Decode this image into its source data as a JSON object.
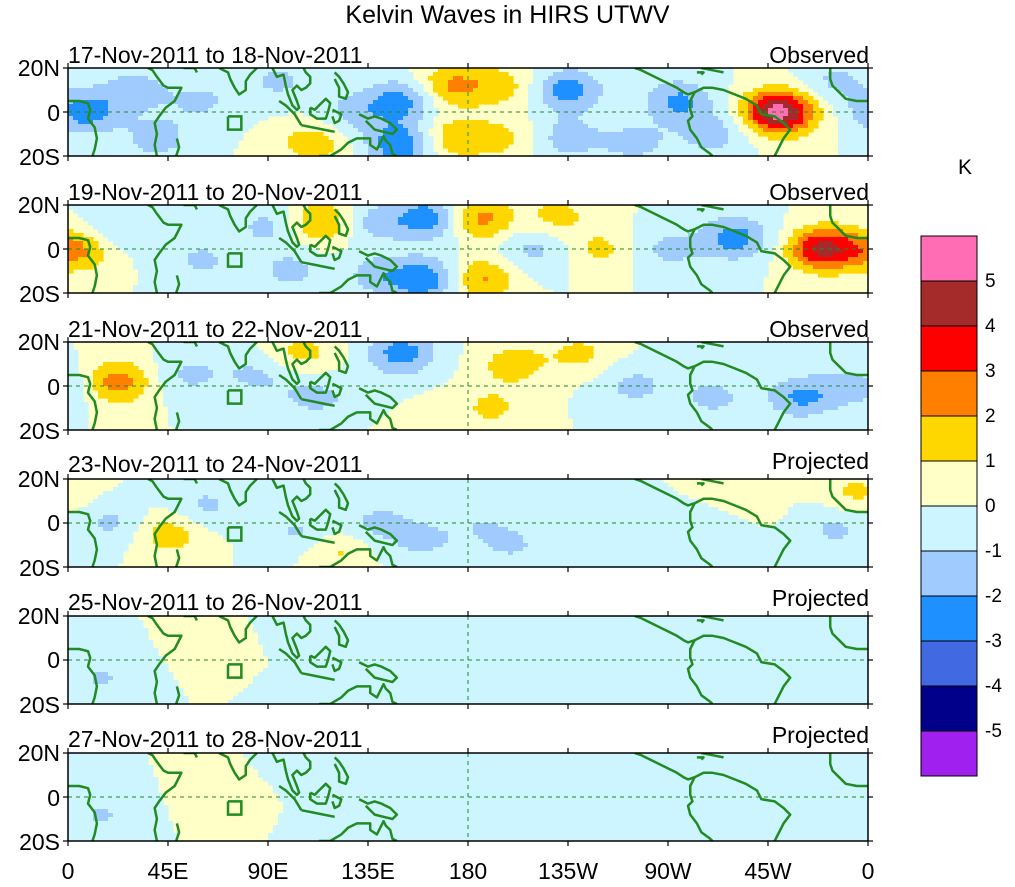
{
  "title": "Kelvin Waves in HIRS UTWV",
  "colorbar": {
    "unit": "K",
    "labels": [
      "5",
      "4",
      "3",
      "2",
      "1",
      "0",
      "-1",
      "-2",
      "-3",
      "-4",
      "-5"
    ],
    "colors": [
      "#ff6eb4",
      "#a52a2a",
      "#ff0000",
      "#ff7f00",
      "#ffd700",
      "#ffffc8",
      "#cdf5ff",
      "#a0cbff",
      "#1e90ff",
      "#4169e1",
      "#00008b",
      "#a020f0"
    ],
    "upper_bounds": [
      5,
      4,
      3,
      2,
      1,
      0,
      -1,
      -2,
      -3,
      -4,
      -5
    ]
  },
  "latitude_labels": [
    "20N",
    "0",
    "20S"
  ],
  "longitude_labels": [
    "0",
    "45E",
    "90E",
    "135E",
    "180",
    "135W",
    "90W",
    "45W",
    "0"
  ],
  "panels": [
    {
      "dates": "17-Nov-2011 to 18-Nov-2011",
      "status": "Observed"
    },
    {
      "dates": "19-Nov-2011 to 20-Nov-2011",
      "status": "Observed"
    },
    {
      "dates": "21-Nov-2011 to 22-Nov-2011",
      "status": "Observed"
    },
    {
      "dates": "23-Nov-2011 to 24-Nov-2011",
      "status": "Projected"
    },
    {
      "dates": "25-Nov-2011 to 26-Nov-2011",
      "status": "Projected"
    },
    {
      "dates": "27-Nov-2011 to 28-Nov-2011",
      "status": "Projected"
    }
  ],
  "anomaly_fields": [
    [
      {
        "lon": 8,
        "lat": 0,
        "amp": -2.5
      },
      {
        "lon": 30,
        "lat": 10,
        "amp": -1.5
      },
      {
        "lon": 40,
        "lat": -12,
        "amp": -1.5
      },
      {
        "lon": 60,
        "lat": 5,
        "amp": -1.2
      },
      {
        "lon": 95,
        "lat": 14,
        "amp": -1.2
      },
      {
        "lon": 110,
        "lat": -14,
        "amp": 1.6
      },
      {
        "lon": 128,
        "lat": 0,
        "amp": -1.3
      },
      {
        "lon": 150,
        "lat": 5,
        "amp": -2.5
      },
      {
        "lon": 150,
        "lat": -15,
        "amp": -3
      },
      {
        "lon": 172,
        "lat": 12,
        "amp": 2.2
      },
      {
        "lon": 172,
        "lat": -12,
        "amp": 1.8
      },
      {
        "lon": 195,
        "lat": 12,
        "amp": 1.4
      },
      {
        "lon": 195,
        "lat": -12,
        "amp": 1.2
      },
      {
        "lon": 225,
        "lat": 10,
        "amp": -2.5
      },
      {
        "lon": 225,
        "lat": -12,
        "amp": -1.5
      },
      {
        "lon": 255,
        "lat": -14,
        "amp": -1.4
      },
      {
        "lon": 275,
        "lat": 5,
        "amp": -2.2
      },
      {
        "lon": 290,
        "lat": -10,
        "amp": -1.5
      },
      {
        "lon": 320,
        "lat": 0,
        "amp": 5.5
      },
      {
        "lon": 345,
        "lat": 14,
        "amp": -1.2
      }
    ],
    [
      {
        "lon": 5,
        "lat": 0,
        "amp": 2.3
      },
      {
        "lon": 20,
        "lat": 8,
        "amp": -1.2
      },
      {
        "lon": 60,
        "lat": -5,
        "amp": -1.2
      },
      {
        "lon": 90,
        "lat": 10,
        "amp": -1.3
      },
      {
        "lon": 100,
        "lat": -10,
        "amp": -1.3
      },
      {
        "lon": 115,
        "lat": 12,
        "amp": 2.3
      },
      {
        "lon": 135,
        "lat": 12,
        "amp": -1.5
      },
      {
        "lon": 140,
        "lat": -12,
        "amp": -1.5
      },
      {
        "lon": 162,
        "lat": 14,
        "amp": -2.8
      },
      {
        "lon": 162,
        "lat": -14,
        "amp": -2.8
      },
      {
        "lon": 185,
        "lat": 14,
        "amp": 2.4
      },
      {
        "lon": 185,
        "lat": -14,
        "amp": 2.3
      },
      {
        "lon": 210,
        "lat": 0,
        "amp": -1.3
      },
      {
        "lon": 220,
        "lat": 15,
        "amp": 1.3
      },
      {
        "lon": 240,
        "lat": 0,
        "amp": 1.2
      },
      {
        "lon": 270,
        "lat": 0,
        "amp": -1.3
      },
      {
        "lon": 300,
        "lat": 5,
        "amp": -2.5
      },
      {
        "lon": 340,
        "lat": 0,
        "amp": 4.3
      }
    ],
    [
      {
        "lon": 22,
        "lat": 2,
        "amp": 2.5
      },
      {
        "lon": 55,
        "lat": 5,
        "amp": -1.2
      },
      {
        "lon": 85,
        "lat": 5,
        "amp": -1.2
      },
      {
        "lon": 105,
        "lat": 15,
        "amp": 1.3
      },
      {
        "lon": 110,
        "lat": -5,
        "amp": -1.3
      },
      {
        "lon": 150,
        "lat": 15,
        "amp": -2.5
      },
      {
        "lon": 140,
        "lat": -10,
        "amp": -1.3
      },
      {
        "lon": 150,
        "lat": -15,
        "amp": 1.5
      },
      {
        "lon": 200,
        "lat": 10,
        "amp": 1.5
      },
      {
        "lon": 190,
        "lat": -10,
        "amp": 1.2
      },
      {
        "lon": 230,
        "lat": 15,
        "amp": 1.2
      },
      {
        "lon": 255,
        "lat": 0,
        "amp": -1.3
      },
      {
        "lon": 290,
        "lat": -5,
        "amp": -1.3
      },
      {
        "lon": 330,
        "lat": -5,
        "amp": -2.2
      },
      {
        "lon": 355,
        "lat": 0,
        "amp": -1.5
      }
    ],
    [
      {
        "lon": 20,
        "lat": 0,
        "amp": -1.2
      },
      {
        "lon": 45,
        "lat": -5,
        "amp": 1.6
      },
      {
        "lon": 62,
        "lat": 8,
        "amp": -1.2
      },
      {
        "lon": 105,
        "lat": -5,
        "amp": -1.3
      },
      {
        "lon": 120,
        "lat": -12,
        "amp": 1.3
      },
      {
        "lon": 140,
        "lat": 0,
        "amp": -1.3
      },
      {
        "lon": 160,
        "lat": -8,
        "amp": -1.2
      },
      {
        "lon": 185,
        "lat": 0,
        "amp": -0.8
      },
      {
        "lon": 200,
        "lat": -10,
        "amp": -1.1
      },
      {
        "lon": 240,
        "lat": 5,
        "amp": -0.8
      },
      {
        "lon": 290,
        "lat": 0,
        "amp": -1.2
      },
      {
        "lon": 300,
        "lat": 10,
        "amp": 1.1
      },
      {
        "lon": 345,
        "lat": -3,
        "amp": -1.2
      },
      {
        "lon": 355,
        "lat": 14,
        "amp": 1.2
      }
    ],
    [
      {
        "lon": 15,
        "lat": -8,
        "amp": -1.1
      },
      {
        "lon": 70,
        "lat": 5,
        "amp": 0.6
      },
      {
        "lon": 105,
        "lat": 12,
        "amp": -0.9
      },
      {
        "lon": 110,
        "lat": -14,
        "amp": -0.9
      },
      {
        "lon": 140,
        "lat": -5,
        "amp": -0.7
      },
      {
        "lon": 200,
        "lat": 5,
        "amp": -0.7
      },
      {
        "lon": 230,
        "lat": -8,
        "amp": -0.6
      },
      {
        "lon": 280,
        "lat": 0,
        "amp": -0.6
      }
    ],
    [
      {
        "lon": 15,
        "lat": -8,
        "amp": -1.1
      },
      {
        "lon": 70,
        "lat": 0,
        "amp": 0.6
      },
      {
        "lon": 110,
        "lat": 14,
        "amp": -0.8
      },
      {
        "lon": 125,
        "lat": -12,
        "amp": -0.9
      },
      {
        "lon": 205,
        "lat": 0,
        "amp": -0.8
      },
      {
        "lon": 240,
        "lat": -5,
        "amp": -0.7
      },
      {
        "lon": 285,
        "lat": 5,
        "amp": -0.6
      }
    ]
  ]
}
